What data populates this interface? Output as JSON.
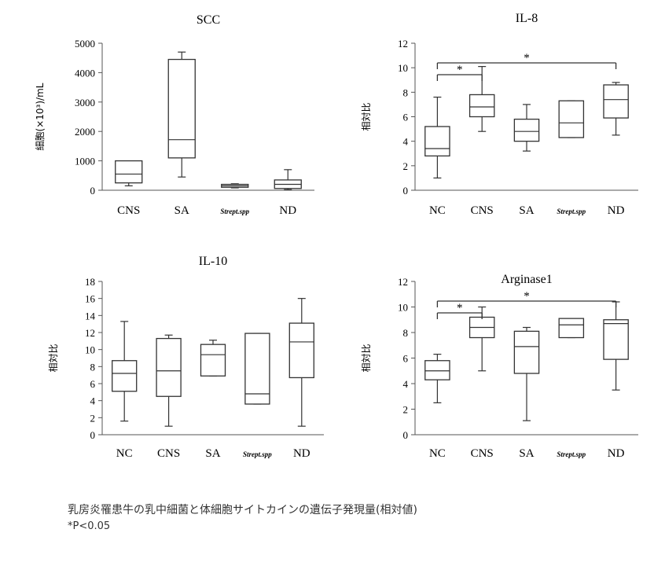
{
  "chart_data": [
    {
      "type": "boxplot",
      "title": "SCC",
      "ylabel": "細胞(×10³)/mL",
      "ylim": [
        0,
        5000
      ],
      "yticks": [
        0,
        1000,
        2000,
        3000,
        4000,
        5000
      ],
      "categories": [
        "CNS",
        "SA",
        "Strept.spp",
        "ND"
      ],
      "boxes": [
        {
          "min": 150,
          "q1": 250,
          "median": 550,
          "q3": 1000,
          "max": 1000
        },
        {
          "min": 450,
          "q1": 1100,
          "median": 1720,
          "q3": 4450,
          "max": 4700
        },
        {
          "min": 80,
          "q1": 100,
          "median": 150,
          "q3": 200,
          "max": 220
        },
        {
          "min": 20,
          "q1": 60,
          "median": 200,
          "q3": 350,
          "max": 700
        }
      ],
      "significance": []
    },
    {
      "type": "boxplot",
      "title": "IL-8",
      "ylabel": "相対比",
      "ylim": [
        0,
        12
      ],
      "yticks": [
        0,
        2,
        4,
        6,
        8,
        10,
        12
      ],
      "categories": [
        "NC",
        "CNS",
        "SA",
        "Strept.spp",
        "ND"
      ],
      "boxes": [
        {
          "min": 1,
          "q1": 2.8,
          "median": 3.4,
          "q3": 5.2,
          "max": 7.6
        },
        {
          "min": 4.8,
          "q1": 6,
          "median": 6.8,
          "q3": 7.8,
          "max": 10.1
        },
        {
          "min": 3.2,
          "q1": 4,
          "median": 4.8,
          "q3": 5.8,
          "max": 7
        },
        {
          "min": 4.3,
          "q1": 4.3,
          "median": 5.5,
          "q3": 7.3,
          "max": 7.3
        },
        {
          "min": 4.5,
          "q1": 5.9,
          "median": 7.4,
          "q3": 8.6,
          "max": 8.8
        }
      ],
      "significance": [
        {
          "from": 0,
          "to": 1,
          "label": "*"
        },
        {
          "from": 0,
          "to": 4,
          "label": "*"
        }
      ]
    },
    {
      "type": "boxplot",
      "title": "IL-10",
      "ylabel": "相対比",
      "ylim": [
        0,
        18
      ],
      "yticks": [
        0,
        2,
        4,
        6,
        8,
        10,
        12,
        14,
        16,
        18
      ],
      "categories": [
        "NC",
        "CNS",
        "SA",
        "Strept.spp",
        "ND"
      ],
      "boxes": [
        {
          "min": 1.6,
          "q1": 5.1,
          "median": 7.2,
          "q3": 8.7,
          "max": 13.3
        },
        {
          "min": 1,
          "q1": 4.5,
          "median": 7.5,
          "q3": 11.3,
          "max": 11.7
        },
        {
          "min": 6.9,
          "q1": 6.9,
          "median": 9.4,
          "q3": 10.6,
          "max": 11.1
        },
        {
          "min": 3.6,
          "q1": 3.6,
          "median": 4.8,
          "q3": 11.9,
          "max": 11.9
        },
        {
          "min": 1,
          "q1": 6.7,
          "median": 10.9,
          "q3": 13.1,
          "max": 16
        }
      ],
      "significance": []
    },
    {
      "type": "boxplot",
      "title": "Arginase1",
      "ylabel": "相対比",
      "ylim": [
        0,
        12
      ],
      "yticks": [
        0,
        2,
        4,
        6,
        8,
        10,
        12
      ],
      "categories": [
        "NC",
        "CNS",
        "SA",
        "Strept.spp",
        "ND"
      ],
      "boxes": [
        {
          "min": 2.5,
          "q1": 4.3,
          "median": 5,
          "q3": 5.8,
          "max": 6.3
        },
        {
          "min": 5,
          "q1": 7.6,
          "median": 8.4,
          "q3": 9.2,
          "max": 10
        },
        {
          "min": 1.1,
          "q1": 4.8,
          "median": 6.9,
          "q3": 8.1,
          "max": 8.4
        },
        {
          "min": 7.6,
          "q1": 7.6,
          "median": 8.6,
          "q3": 9.1,
          "max": 9.1
        },
        {
          "min": 3.5,
          "q1": 5.9,
          "median": 8.7,
          "q3": 9,
          "max": 10.4
        }
      ],
      "significance": [
        {
          "from": 0,
          "to": 1,
          "label": "*"
        },
        {
          "from": 0,
          "to": 4,
          "label": "*"
        }
      ]
    }
  ],
  "caption": "乳房炎罹患牛の乳中細菌と体細胞サイトカインの遺伝子発現量(相対値)",
  "note": "*P<0.05"
}
